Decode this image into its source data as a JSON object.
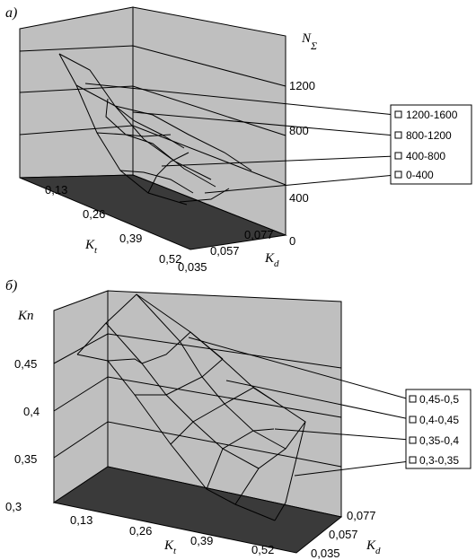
{
  "chart_data": [
    {
      "type": "surface",
      "panel_label": "а)",
      "zlabel_main": "N",
      "zlabel_sub": "Σ",
      "x_axis_label_main": "K",
      "x_axis_label_sub": "t",
      "y_axis_label_main": "K",
      "y_axis_label_sub": "d",
      "x_ticks": [
        "0,13",
        "0,26",
        "0,39",
        "0,52"
      ],
      "y_ticks": [
        "0,035",
        "0,057",
        "0,077"
      ],
      "z_ticks": [
        "0",
        "400",
        "800",
        "1200"
      ],
      "zlim": [
        0,
        1600
      ],
      "legend": [
        "1200-1600",
        "800-1200",
        "400-800",
        "0-400"
      ],
      "legend_placement": "right",
      "wall_color": "#bfbfbf",
      "floor_color": "#3a3a3a"
    },
    {
      "type": "surface",
      "panel_label": "б)",
      "zlabel_main": "Kn",
      "zlabel_sub": "",
      "x_axis_label_main": "K",
      "x_axis_label_sub": "t",
      "y_axis_label_main": "K",
      "y_axis_label_sub": "d",
      "x_ticks": [
        "0,13",
        "0,26",
        "0,39",
        "0,52"
      ],
      "y_ticks": [
        "0,035",
        "0,057",
        "0,077"
      ],
      "z_ticks": [
        "0,3",
        "0,35",
        "0,4",
        "0,45"
      ],
      "zlim": [
        0.3,
        0.5
      ],
      "legend": [
        "0,45-0,5",
        "0,4-0,45",
        "0,35-0,4",
        "0,3-0,35"
      ],
      "legend_placement": "right",
      "wall_color": "#bfbfbf",
      "floor_color": "#3a3a3a"
    }
  ]
}
